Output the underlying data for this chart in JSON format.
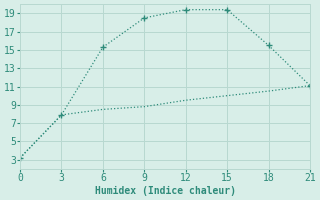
{
  "xlabel": "Humidex (Indice chaleur)",
  "line1_x": [
    0,
    3,
    6,
    9,
    12,
    15,
    18,
    21
  ],
  "line1_y": [
    3.2,
    7.9,
    15.3,
    18.5,
    19.4,
    19.4,
    15.5,
    11.1
  ],
  "line2_x": [
    0,
    3,
    6,
    9,
    12,
    15,
    18,
    21
  ],
  "line2_y": [
    3.2,
    7.9,
    8.5,
    8.8,
    9.5,
    10.0,
    10.5,
    11.1
  ],
  "line_color": "#2e8b7a",
  "bg_color": "#d8eee8",
  "grid_color": "#b8d8d0",
  "xlim": [
    0,
    21
  ],
  "ylim": [
    2,
    20
  ],
  "xticks": [
    0,
    3,
    6,
    9,
    12,
    15,
    18,
    21
  ],
  "yticks": [
    3,
    5,
    7,
    9,
    11,
    13,
    15,
    17,
    19
  ],
  "xlabel_fontsize": 7,
  "tick_fontsize": 7
}
